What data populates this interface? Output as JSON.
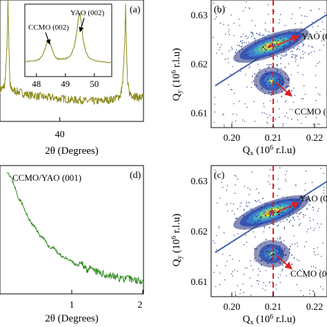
{
  "chart_data": [
    {
      "id": "panel-a",
      "type": "line",
      "panel_label": "(a)",
      "xlabel": "2θ (Degrees)",
      "ylabel": "",
      "xlim": [
        34,
        48.4
      ],
      "xticks": [
        40
      ],
      "line_color": "#8b8a1c",
      "series": [
        {
          "x": [
            34.0,
            34.3,
            34.5,
            34.7,
            34.8,
            34.9,
            35.0,
            35.1,
            35.4,
            35.8,
            36.2,
            36.6,
            37.0,
            37.4,
            37.8,
            38.2,
            38.6,
            39.0,
            39.4,
            39.8,
            40.2,
            40.6,
            41.0,
            41.4,
            41.8,
            42.2,
            42.6,
            43.0,
            43.4,
            43.8,
            44.2,
            44.6,
            45.0,
            45.4,
            45.8,
            46.1,
            46.3,
            46.5,
            46.6,
            46.7,
            46.8,
            47.0,
            47.3,
            47.6,
            47.9,
            48.2,
            48.4
          ],
          "y": [
            0.25,
            0.26,
            0.3,
            0.6,
            1.0,
            0.6,
            0.3,
            0.25,
            0.24,
            0.23,
            0.22,
            0.21,
            0.2,
            0.2,
            0.19,
            0.19,
            0.18,
            0.18,
            0.18,
            0.17,
            0.17,
            0.17,
            0.16,
            0.16,
            0.16,
            0.16,
            0.15,
            0.15,
            0.15,
            0.15,
            0.15,
            0.16,
            0.16,
            0.17,
            0.18,
            0.2,
            0.3,
            0.6,
            0.95,
            0.6,
            0.3,
            0.22,
            0.2,
            0.19,
            0.18,
            0.18,
            0.18
          ]
        }
      ],
      "inset": {
        "xlim": [
          47.6,
          50.6
        ],
        "xticks": [
          48,
          49,
          50
        ],
        "labels": [
          "CCMO (002)",
          "YAO (002)"
        ],
        "label_x": [
          48.4,
          49.5
        ],
        "x": [
          47.6,
          47.8,
          48.0,
          48.1,
          48.2,
          48.3,
          48.4,
          48.5,
          48.6,
          48.7,
          48.8,
          48.9,
          49.0,
          49.1,
          49.2,
          49.3,
          49.4,
          49.45,
          49.5,
          49.55,
          49.6,
          49.7,
          49.8,
          50.0,
          50.2,
          50.4,
          50.6
        ],
        "y": [
          0.08,
          0.09,
          0.1,
          0.12,
          0.18,
          0.3,
          0.45,
          0.35,
          0.2,
          0.13,
          0.12,
          0.12,
          0.13,
          0.15,
          0.2,
          0.32,
          0.6,
          0.82,
          0.9,
          0.75,
          0.5,
          0.25,
          0.15,
          0.1,
          0.08,
          0.07,
          0.06
        ]
      }
    },
    {
      "id": "panel-b",
      "type": "heatmap",
      "panel_label": "(b)",
      "xlabel": "Qx (10⁶ r.l.u)",
      "ylabel": "Qy (10⁶ r.l.u)",
      "xlim": [
        0.195,
        0.223
      ],
      "ylim": [
        0.607,
        0.633
      ],
      "xticks": [
        0.2,
        0.21,
        0.22
      ],
      "yticks": [
        0.61,
        0.62,
        0.63
      ],
      "dashed_x": 0.21,
      "peaks": [
        {
          "label": "YAO (0",
          "qx": 0.21,
          "qy": 0.6237
        },
        {
          "label": "CCMO (0",
          "qx": 0.21,
          "qy": 0.6165
        }
      ]
    },
    {
      "id": "panel-c",
      "type": "heatmap",
      "panel_label": "(c)",
      "xlabel": "Qx (10⁶ r.l.u)",
      "ylabel": "Qy (10⁶ r.l.u)",
      "xlim": [
        0.195,
        0.223
      ],
      "ylim": [
        0.607,
        0.633
      ],
      "xticks": [
        0.2,
        0.21,
        0.22
      ],
      "yticks": [
        0.61,
        0.62,
        0.63
      ],
      "dashed_x": 0.21,
      "peaks": [
        {
          "label": "YAO (0",
          "qx": 0.21,
          "qy": 0.6237
        },
        {
          "label": "CCMO (0",
          "qx": 0.21,
          "qy": 0.6155
        }
      ]
    },
    {
      "id": "panel-d",
      "type": "line",
      "panel_label": "(d)",
      "annotation": "CCMO/YAO (001)",
      "xlabel": "2θ (Degrees)",
      "ylabel": "",
      "xlim": [
        0,
        2
      ],
      "xticks": [
        1,
        2
      ],
      "line_color": "#2e8b1e",
      "series": [
        {
          "x": [
            0.1,
            0.15,
            0.2,
            0.25,
            0.3,
            0.35,
            0.4,
            0.45,
            0.5,
            0.55,
            0.6,
            0.65,
            0.7,
            0.75,
            0.8,
            0.85,
            0.9,
            0.95,
            1.0,
            1.05,
            1.1,
            1.15,
            1.2,
            1.25,
            1.3,
            1.35,
            1.4,
            1.45,
            1.5,
            1.55,
            1.6,
            1.65,
            1.7,
            1.75,
            1.8,
            1.85,
            1.9,
            1.95,
            2.0
          ],
          "y": [
            1.0,
            0.95,
            0.88,
            0.78,
            0.74,
            0.66,
            0.6,
            0.55,
            0.52,
            0.46,
            0.44,
            0.39,
            0.35,
            0.36,
            0.31,
            0.29,
            0.27,
            0.25,
            0.24,
            0.21,
            0.2,
            0.22,
            0.18,
            0.17,
            0.16,
            0.15,
            0.14,
            0.13,
            0.12,
            0.12,
            0.11,
            0.1,
            0.1,
            0.09,
            0.09,
            0.09,
            0.08,
            0.08,
            0.08
          ]
        }
      ]
    }
  ]
}
